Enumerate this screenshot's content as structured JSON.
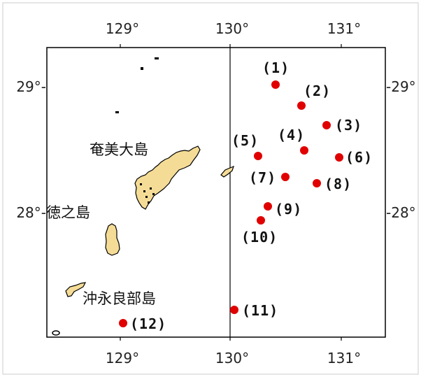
{
  "colors": {
    "frame": "#000000",
    "land_fill": "#f5dc96",
    "land_stroke": "#000000",
    "marker": "#e00000",
    "background": "#ffffff"
  },
  "axes": {
    "longitude_labels": [
      "129°",
      "130°",
      "131°"
    ],
    "latitude_labels_left": [
      "29°-",
      "28°-"
    ],
    "latitude_labels_right": [
      "-29°",
      "-28°"
    ]
  },
  "places": {
    "amami": "奄美大島",
    "tokunoshima": "徳之島",
    "okinoerabu": "沖永良部島"
  },
  "points": [
    {
      "label": "(1)"
    },
    {
      "label": "(2)"
    },
    {
      "label": "(3)"
    },
    {
      "label": "(4)"
    },
    {
      "label": "(5)"
    },
    {
      "label": "(6)"
    },
    {
      "label": "(7)"
    },
    {
      "label": "(8)"
    },
    {
      "label": "(9)"
    },
    {
      "label": "(10)"
    },
    {
      "label": "(11)"
    },
    {
      "label": "(12)"
    }
  ]
}
